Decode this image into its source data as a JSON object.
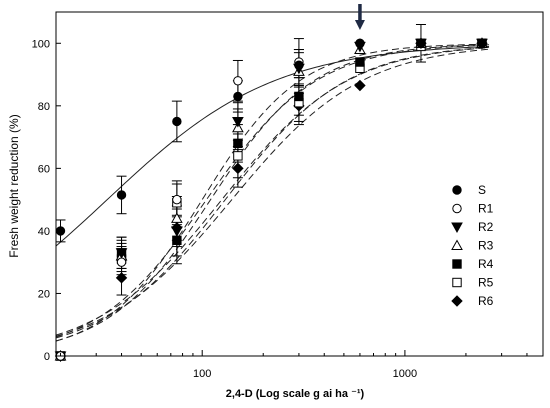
{
  "chart_data": {
    "type": "scatter",
    "title": "",
    "xlabel": "2,4-D (Log scale g ai ha ⁻¹)",
    "ylabel": "Fresh weight reduction (%)",
    "xscale": "log",
    "xlim": [
      19,
      4800
    ],
    "ylim": [
      0,
      110
    ],
    "xticks": [
      100,
      1000
    ],
    "xtick_labels": [
      "100",
      "1000"
    ],
    "yticks": [
      0,
      20,
      40,
      60,
      80,
      100
    ],
    "grid": false,
    "legend_position": "right",
    "arrow_marker_x": 600,
    "series": [
      {
        "name": "S",
        "marker": "filled-circle",
        "x": [
          20,
          40,
          75,
          150,
          300,
          600,
          1200,
          2400
        ],
        "y": [
          40,
          51.5,
          75,
          83,
          93,
          100,
          100,
          100
        ],
        "err": [
          3.5,
          6,
          6.5,
          5,
          4,
          0,
          0,
          0
        ],
        "curve": {
          "ec50": 34,
          "slope": 1.05,
          "max": 100
        }
      },
      {
        "name": "R1",
        "marker": "open-circle",
        "x": [
          20,
          40,
          75,
          150,
          300,
          600,
          1200,
          2400
        ],
        "y": [
          0,
          30,
          50,
          88,
          94,
          100,
          100,
          100
        ],
        "err": [
          0,
          5,
          5,
          6.5,
          7.5,
          0,
          0,
          0
        ],
        "curve": {
          "ec50": 100,
          "slope": 1.8,
          "max": 100
        }
      },
      {
        "name": "R2",
        "marker": "filled-triangle-down",
        "x": [
          20,
          40,
          75,
          150,
          300,
          600,
          1200,
          2400
        ],
        "y": [
          0,
          33,
          40,
          75,
          92,
          99,
          100,
          100
        ],
        "err": [
          0,
          5,
          8,
          6,
          6,
          0,
          0,
          0
        ],
        "curve": {
          "ec50": 110,
          "slope": 1.7,
          "max": 100
        }
      },
      {
        "name": "R3",
        "marker": "open-triangle-up",
        "x": [
          20,
          40,
          75,
          150,
          300,
          600,
          1200,
          2400
        ],
        "y": [
          0,
          32,
          44,
          73,
          91,
          98,
          100,
          100
        ],
        "err": [
          0,
          5,
          7,
          6,
          7,
          0,
          0,
          0
        ],
        "curve": {
          "ec50": 105,
          "slope": 1.6,
          "max": 100
        }
      },
      {
        "name": "R4",
        "marker": "filled-square",
        "x": [
          20,
          40,
          75,
          150,
          300,
          600,
          1200,
          2400
        ],
        "y": [
          0,
          33,
          37,
          68,
          83,
          94,
          100,
          100
        ],
        "err": [
          0,
          5,
          7.5,
          6,
          6,
          0,
          6,
          0
        ],
        "curve": {
          "ec50": 130,
          "slope": 1.45,
          "max": 100
        }
      },
      {
        "name": "R5",
        "marker": "open-square",
        "x": [
          20,
          40,
          75,
          150,
          300,
          600,
          1200,
          2400
        ],
        "y": [
          0,
          31,
          49,
          64,
          81,
          92,
          99,
          100
        ],
        "err": [
          0,
          5,
          7,
          7,
          6,
          0,
          0,
          0
        ],
        "curve": {
          "ec50": 125,
          "slope": 1.4,
          "max": 100
        }
      },
      {
        "name": "R6",
        "marker": "filled-diamond",
        "x": [
          20,
          40,
          75,
          150,
          300,
          600,
          1200,
          2400
        ],
        "y": [
          0,
          25,
          41,
          60,
          80,
          86.5,
          100,
          100
        ],
        "err": [
          0,
          5.5,
          6,
          6,
          6,
          0,
          0,
          0
        ],
        "curve": {
          "ec50": 140,
          "slope": 1.35,
          "max": 100
        }
      }
    ]
  }
}
